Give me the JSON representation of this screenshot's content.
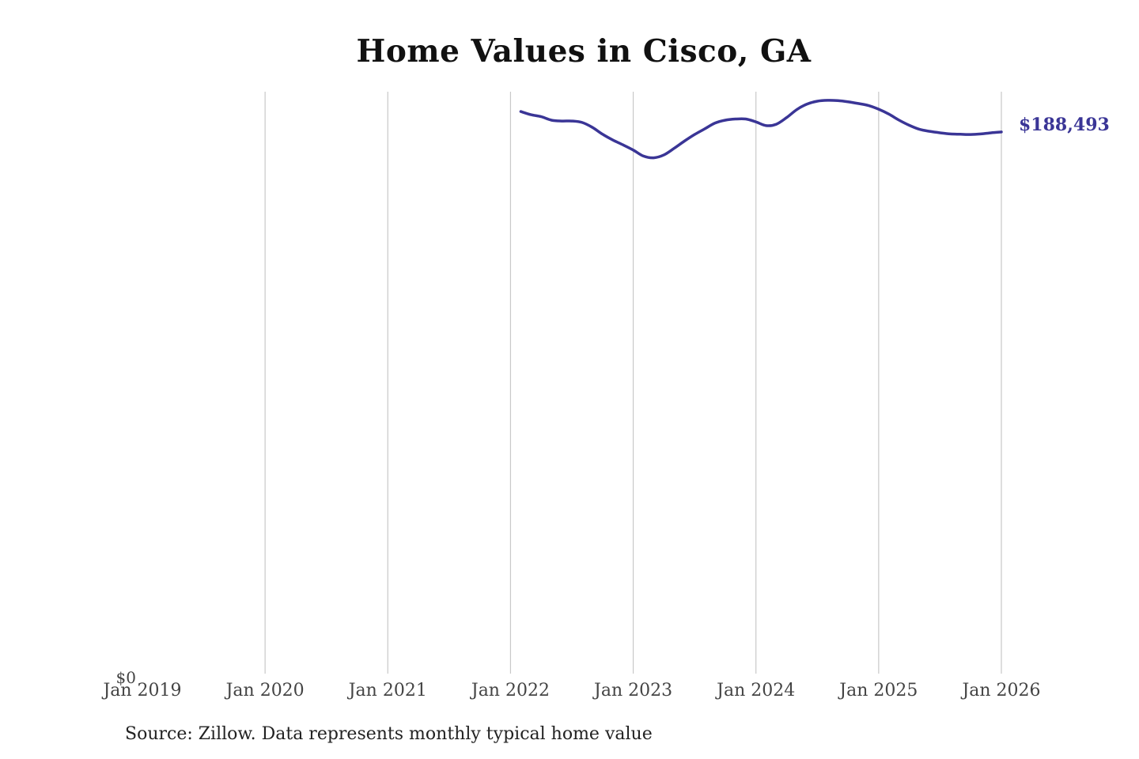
{
  "chart_data": {
    "type": "line",
    "title": "Home Values in Cisco, GA",
    "xlabel": "",
    "ylabel": "",
    "x_ticks": [
      "Jan 2019",
      "Jan 2020",
      "Jan 2021",
      "Jan 2022",
      "Jan 2023",
      "Jan 2024",
      "Jan 2025",
      "Jan 2026"
    ],
    "y_ticks": [
      "$0"
    ],
    "xlim": [
      "2019-01",
      "2026-01"
    ],
    "ylim": [
      0,
      202500
    ],
    "grid": "vertical",
    "series": [
      {
        "color": "#3a3596",
        "end_label": "$188,493",
        "x": [
          "2022-02",
          "2022-03",
          "2022-04",
          "2022-05",
          "2022-06",
          "2022-07",
          "2022-08",
          "2022-09",
          "2022-10",
          "2022-11",
          "2022-12",
          "2023-01",
          "2023-02",
          "2023-03",
          "2023-04",
          "2023-05",
          "2023-06",
          "2023-07",
          "2023-08",
          "2023-09",
          "2023-10",
          "2023-11",
          "2023-12",
          "2024-01",
          "2024-02",
          "2024-03",
          "2024-04",
          "2024-05",
          "2024-06",
          "2024-07",
          "2024-08",
          "2024-09",
          "2024-10",
          "2024-11",
          "2024-12",
          "2025-01",
          "2025-02",
          "2025-03",
          "2025-04",
          "2025-05",
          "2025-06",
          "2025-07",
          "2025-08",
          "2025-09",
          "2025-10",
          "2025-11",
          "2025-12",
          "2026-01"
        ],
        "values": [
          195600,
          194500,
          193800,
          192600,
          192300,
          192300,
          191800,
          190100,
          187700,
          185700,
          184000,
          182200,
          180100,
          179500,
          180500,
          182800,
          185300,
          187600,
          189600,
          191600,
          192600,
          193000,
          193000,
          192000,
          190700,
          191200,
          193500,
          196300,
          198200,
          199200,
          199500,
          199400,
          199000,
          198400,
          197700,
          196400,
          194700,
          192600,
          190800,
          189400,
          188700,
          188200,
          187800,
          187700,
          187600,
          187800,
          188200,
          188493
        ]
      }
    ]
  },
  "source": "Source: Zillow. Data represents monthly typical home value"
}
